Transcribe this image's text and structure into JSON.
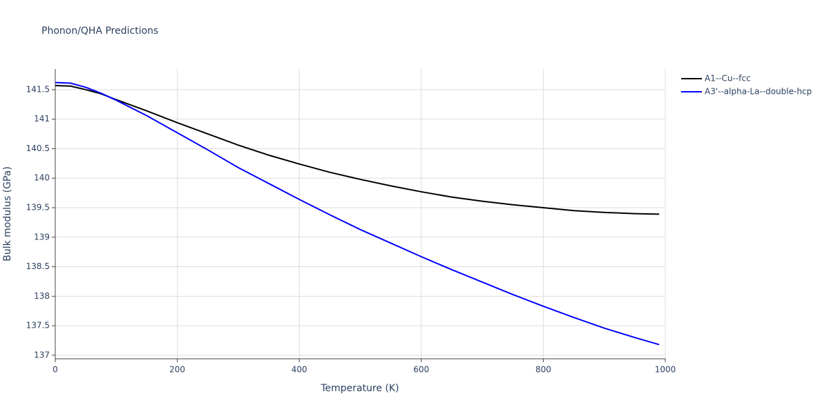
{
  "chart_data": {
    "type": "line",
    "title": "Phonon/QHA Predictions",
    "x_label": "Temperature (K)",
    "y_label": "Bulk modulus (GPa)",
    "x": [
      0,
      25,
      50,
      75,
      100,
      150,
      200,
      250,
      300,
      350,
      400,
      450,
      500,
      550,
      600,
      650,
      700,
      750,
      800,
      850,
      900,
      950,
      990
    ],
    "series": [
      {
        "name": "A1--Cu--fcc",
        "color": "#000000",
        "values": [
          141.57,
          141.56,
          141.5,
          141.43,
          141.33,
          141.14,
          140.94,
          140.75,
          140.56,
          140.39,
          140.24,
          140.1,
          139.98,
          139.87,
          139.77,
          139.68,
          139.61,
          139.55,
          139.5,
          139.45,
          139.42,
          139.4,
          139.39
        ]
      },
      {
        "name": "A3'--alpha-La--double-hcp",
        "color": "#0000ff",
        "values": [
          141.62,
          141.61,
          141.54,
          141.44,
          141.32,
          141.06,
          140.77,
          140.48,
          140.18,
          139.91,
          139.64,
          139.38,
          139.13,
          138.9,
          138.67,
          138.45,
          138.24,
          138.03,
          137.83,
          137.64,
          137.46,
          137.3,
          137.18
        ]
      }
    ],
    "xlim": [
      0,
      1000
    ],
    "xticks": [
      0,
      200,
      400,
      600,
      800,
      1000
    ],
    "ylim": [
      136.94,
      141.85
    ],
    "yticks": [
      137,
      137.5,
      138,
      138.5,
      139,
      139.5,
      140,
      140.5,
      141,
      141.5
    ],
    "grid": true,
    "legend": "right"
  }
}
